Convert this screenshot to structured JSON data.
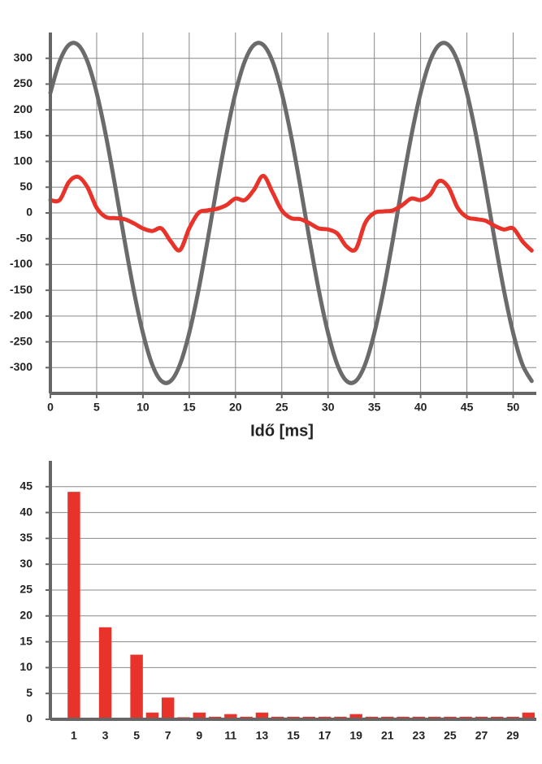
{
  "chart_data": [
    {
      "type": "line",
      "x_label": "Idő [ms]",
      "x": [
        0,
        1,
        2,
        3,
        4,
        5,
        6,
        7,
        8,
        9,
        10,
        11,
        12,
        13,
        14,
        15,
        16,
        17,
        18,
        19,
        20,
        21,
        22,
        23,
        24,
        25,
        26,
        27,
        28,
        29,
        30,
        31,
        32,
        33,
        34,
        35,
        36,
        37,
        38,
        39,
        40,
        41,
        42,
        43,
        44,
        45,
        46,
        47,
        48,
        49,
        50,
        51,
        52
      ],
      "series": [
        {
          "color": "#6b6b6b",
          "values": [
            233,
            294,
            326,
            326,
            294,
            233,
            150,
            52,
            -52,
            -150,
            -233,
            -294,
            -326,
            -326,
            -294,
            -233,
            -150,
            -52,
            52,
            150,
            233,
            294,
            326,
            326,
            294,
            233,
            150,
            52,
            -52,
            -150,
            -233,
            -294,
            -326,
            -326,
            -294,
            -233,
            -150,
            -52,
            52,
            150,
            233,
            294,
            326,
            326,
            294,
            233,
            150,
            52,
            -52,
            -150,
            -233,
            -294,
            -326
          ]
        },
        {
          "color": "#e8332a",
          "values": [
            25,
            25,
            60,
            70,
            50,
            10,
            -8,
            -10,
            -12,
            -20,
            -30,
            -35,
            -30,
            -55,
            -72,
            -30,
            0,
            5,
            8,
            15,
            28,
            25,
            45,
            72,
            40,
            5,
            -10,
            -12,
            -20,
            -30,
            -32,
            -40,
            -65,
            -70,
            -20,
            0,
            3,
            5,
            15,
            28,
            25,
            35,
            62,
            50,
            10,
            -8,
            -12,
            -15,
            -25,
            -32,
            -30,
            -55,
            -73
          ]
        }
      ],
      "xlim": [
        0,
        52.5
      ],
      "xticks": [
        0,
        5,
        10,
        15,
        20,
        25,
        30,
        35,
        40,
        45,
        50
      ],
      "ylim": [
        -350,
        350
      ],
      "yticks": [
        -300,
        -250,
        -200,
        -150,
        -100,
        -50,
        0,
        50,
        100,
        150,
        200,
        250,
        300
      ],
      "grid": "both"
    },
    {
      "type": "bar",
      "categories": [
        "1",
        null,
        "3",
        null,
        "5",
        null,
        "7",
        null,
        "9",
        null,
        "11",
        null,
        "13",
        null,
        "15",
        null,
        "17",
        null,
        "19",
        null,
        "21",
        null,
        "23",
        null,
        "25",
        null,
        "27",
        null,
        "29",
        null
      ],
      "values": [
        44,
        0.3,
        17.8,
        0.3,
        12.5,
        1.3,
        4.2,
        0.4,
        1.3,
        0.5,
        1.0,
        0.5,
        1.3,
        0.5,
        0.5,
        0.5,
        0.5,
        0.5,
        1.0,
        0.5,
        0.5,
        0.5,
        0.5,
        0.5,
        0.5,
        0.5,
        0.5,
        0.5,
        0.5,
        1.3
      ],
      "color": "#e8332a",
      "ylim": [
        0,
        50
      ],
      "yticks": [
        0,
        5,
        10,
        15,
        20,
        25,
        30,
        35,
        40,
        45
      ],
      "grid": "y"
    }
  ]
}
